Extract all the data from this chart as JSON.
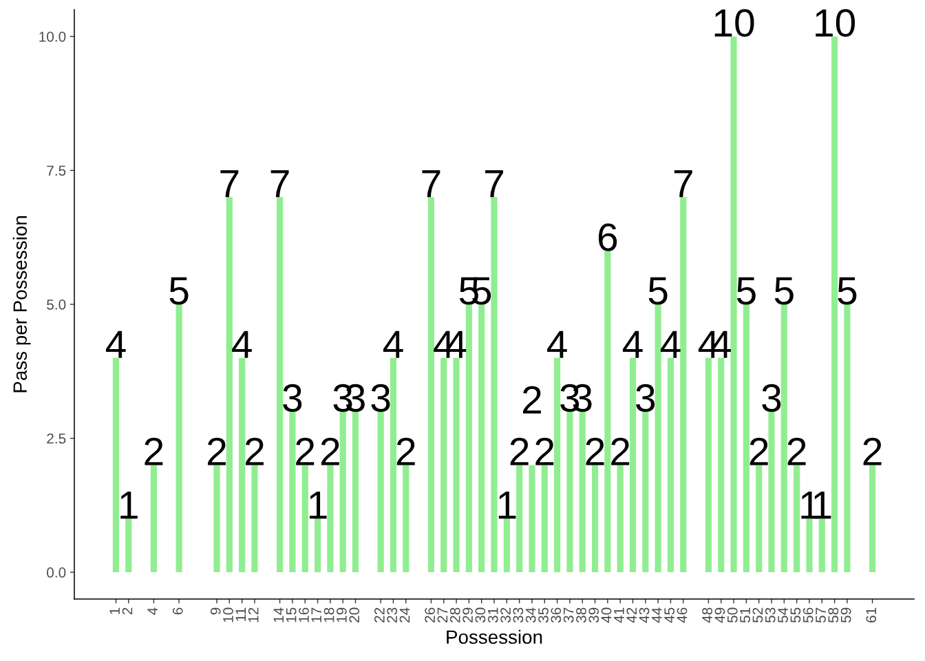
{
  "chart_data": {
    "type": "bar",
    "xlabel": "Possession",
    "ylabel": "Pass per Possession",
    "x": [
      1,
      2,
      4,
      6,
      9,
      10,
      11,
      12,
      14,
      15,
      16,
      17,
      18,
      19,
      20,
      22,
      23,
      24,
      26,
      27,
      28,
      29,
      30,
      31,
      32,
      33,
      34,
      35,
      36,
      37,
      38,
      39,
      40,
      41,
      42,
      43,
      44,
      45,
      46,
      48,
      49,
      50,
      51,
      52,
      53,
      54,
      55,
      56,
      57,
      58,
      59,
      61
    ],
    "values": [
      4,
      1,
      2,
      5,
      2,
      7,
      4,
      2,
      7,
      3,
      2,
      1,
      2,
      3,
      3,
      3,
      4,
      2,
      7,
      4,
      4,
      5,
      5,
      7,
      1,
      2,
      2,
      2,
      4,
      3,
      3,
      2,
      6,
      2,
      4,
      3,
      5,
      4,
      7,
      4,
      4,
      10,
      5,
      2,
      3,
      5,
      2,
      1,
      1,
      10,
      5,
      2
    ],
    "color": "#90ee90",
    "xlim": [
      -2.3,
      64.3
    ],
    "ylim": [
      -0.5,
      10.5
    ],
    "xticks": [
      1,
      2,
      4,
      6,
      9,
      10,
      11,
      12,
      14,
      15,
      16,
      17,
      18,
      19,
      20,
      22,
      23,
      24,
      26,
      27,
      28,
      29,
      30,
      31,
      32,
      33,
      34,
      35,
      36,
      37,
      38,
      39,
      40,
      41,
      42,
      43,
      44,
      45,
      46,
      48,
      49,
      50,
      51,
      52,
      53,
      54,
      55,
      56,
      57,
      58,
      59,
      61
    ],
    "yticks": [
      {
        "value": 0,
        "label": "0.0"
      },
      {
        "value": 2.5,
        "label": "2.5"
      },
      {
        "value": 5,
        "label": "5.0"
      },
      {
        "value": 7.5,
        "label": "7.5"
      },
      {
        "value": 10,
        "label": "10.0"
      }
    ],
    "data_labels": true,
    "grid": false
  }
}
